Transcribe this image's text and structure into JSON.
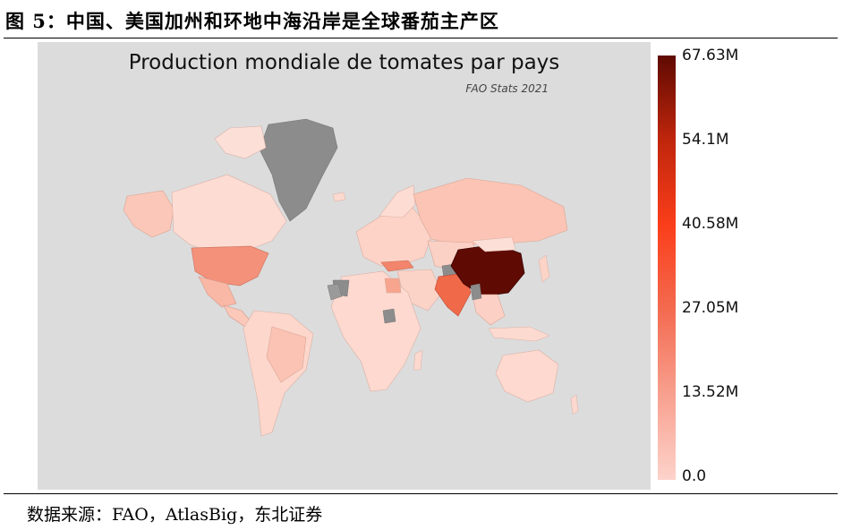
{
  "figure": {
    "caption": "图 5：中国、美国加州和环地中海沿岸是全球番茄主产区",
    "source": "数据来源：FAO，AtlasBig，东北证券"
  },
  "map": {
    "title": "Production mondiale de tomates par pays",
    "credit": "FAO Stats 2021",
    "background_color": "#dcdcdc",
    "no_data_color": "#8c8c8c",
    "highlighted_regions": [
      {
        "name": "China",
        "level": 1.0,
        "color": "#5f0a02"
      },
      {
        "name": "India",
        "level": 0.3,
        "color": "#f06a4a"
      },
      {
        "name": "United States",
        "level": 0.16,
        "color": "#f4917a"
      },
      {
        "name": "Turkey",
        "level": 0.19,
        "color": "#f2856c"
      }
    ]
  },
  "colorbar": {
    "min": 0.0,
    "max": 67.63,
    "unit": "M",
    "ticks": [
      "67.63M",
      "54.1M",
      "40.58M",
      "27.05M",
      "13.52M",
      "0.0"
    ],
    "colors": [
      "#fdd3cb",
      "#f8a08f",
      "#f36b50",
      "#fb3e1a",
      "#c0260c",
      "#5f0a02"
    ]
  }
}
